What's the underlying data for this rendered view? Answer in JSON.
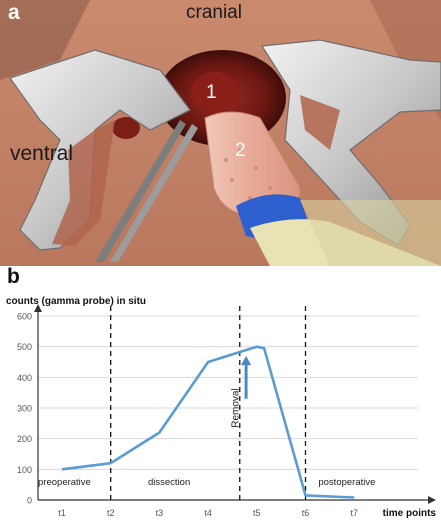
{
  "panel_a": {
    "letter": "a",
    "labels": {
      "cranial": "cranial",
      "ventral": "ventral",
      "marker_1": "1",
      "marker_2": "2"
    }
  },
  "panel_b": {
    "letter": "b"
  },
  "colors": {
    "line": "#5b9bd5",
    "arrow": "#4f86c6",
    "tissue": "#b86a58",
    "retractor": "#d8d8d8",
    "probe_tip": "#e8b8a8",
    "probe_ring": "#2e5fcf"
  },
  "chart_data": {
    "type": "line",
    "ylabel": "counts (gamma probe) in situ",
    "xlabel": "time points",
    "categories": [
      "t1",
      "t2",
      "t3",
      "t4",
      "t5",
      "t6",
      "t7"
    ],
    "y_ticks": [
      "0",
      "100",
      "200",
      "300",
      "400",
      "500",
      "600"
    ],
    "ylim": [
      0,
      600
    ],
    "series": [
      {
        "values": [
          100,
          120,
          220,
          450,
          500,
          15,
          8
        ]
      }
    ],
    "x_extra_points": [
      {
        "x": 4.15,
        "y": 495
      }
    ],
    "phase_dividers": [
      1.0,
      3.65,
      5.0
    ],
    "phases": [
      "preoperative",
      "dissection",
      "postoperative"
    ],
    "annotation": "Removal",
    "grid": "horizontal"
  }
}
